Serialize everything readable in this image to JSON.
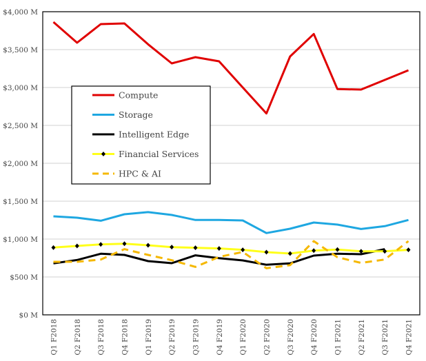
{
  "chart_data": {
    "type": "line",
    "title": "",
    "xlabel": "",
    "ylabel": "",
    "ylim": [
      0,
      4000
    ],
    "grid": true,
    "legend_position": "center-left",
    "y_ticks": [
      "$0 M",
      "$500 M",
      "$1,000 M",
      "$1,500 M",
      "$2,000 M",
      "$2,500 M",
      "$3,000 M",
      "$3,500 M",
      "$4,000 M"
    ],
    "y_tick_values": [
      0,
      500,
      1000,
      1500,
      2000,
      2500,
      3000,
      3500,
      4000
    ],
    "categories": [
      "Q1 F2018",
      "Q2 F2018",
      "Q3 F2018",
      "Q4 F2018",
      "Q1 F2019",
      "Q2 F2019",
      "Q3 F2019",
      "Q4 F2019",
      "Q1 F2020",
      "Q2 F2020",
      "Q3 F2020",
      "Q4 F2020",
      "Q1 F2021",
      "Q2 F2021",
      "Q3 F2021",
      "Q4 F2021"
    ],
    "series": [
      {
        "name": "Compute",
        "color": "#e00000",
        "style": "solid",
        "values": [
          3864,
          3591,
          3836,
          3845,
          3570,
          3318,
          3400,
          3345,
          3000,
          2657,
          3409,
          3706,
          2979,
          2973,
          3100,
          3227
        ]
      },
      {
        "name": "Storage",
        "color": "#1ea7e1",
        "style": "solid",
        "values": [
          1300,
          1282,
          1242,
          1327,
          1355,
          1318,
          1252,
          1252,
          1245,
          1079,
          1136,
          1218,
          1191,
          1133,
          1170,
          1252
        ]
      },
      {
        "name": "Intelligent Edge",
        "color": "#000000",
        "style": "solid",
        "values": [
          679,
          724,
          806,
          791,
          709,
          682,
          785,
          748,
          718,
          661,
          679,
          782,
          806,
          800,
          867,
          null
        ]
      },
      {
        "name": "Financial Services",
        "color": "#ffff1a",
        "style": "solid-diamond-markers",
        "values": [
          888,
          909,
          930,
          939,
          918,
          894,
          885,
          876,
          858,
          827,
          809,
          848,
          861,
          839,
          839,
          858
        ]
      },
      {
        "name": "HPC & AI",
        "color": "#f5b800",
        "style": "dashed",
        "values": [
          700,
          700,
          730,
          867,
          791,
          721,
          633,
          765,
          830,
          615,
          655,
          973,
          760,
          685,
          730,
          973
        ]
      }
    ]
  }
}
